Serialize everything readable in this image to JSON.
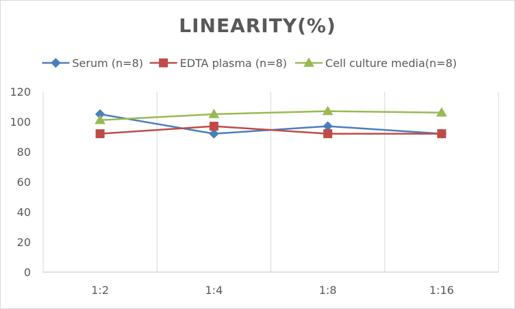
{
  "chart_data": {
    "type": "line",
    "title": "LINEARITY(%)",
    "categories": [
      "1:2",
      "1:4",
      "1:8",
      "1:16"
    ],
    "ylim": [
      0,
      120
    ],
    "yticks": [
      0,
      20,
      40,
      60,
      80,
      100,
      120
    ],
    "grid": "vertical",
    "legend_position": "top",
    "series": [
      {
        "name": "Serum (n=8)",
        "values": [
          105,
          92,
          97,
          92
        ],
        "color": "#4a7ebb",
        "marker": "diamond"
      },
      {
        "name": "EDTA plasma (n=8)",
        "values": [
          92,
          97,
          92,
          92
        ],
        "color": "#be4b48",
        "marker": "square"
      },
      {
        "name": "Cell culture media(n=8)",
        "values": [
          101,
          105,
          107,
          106
        ],
        "color": "#98b954",
        "marker": "triangle"
      }
    ]
  }
}
